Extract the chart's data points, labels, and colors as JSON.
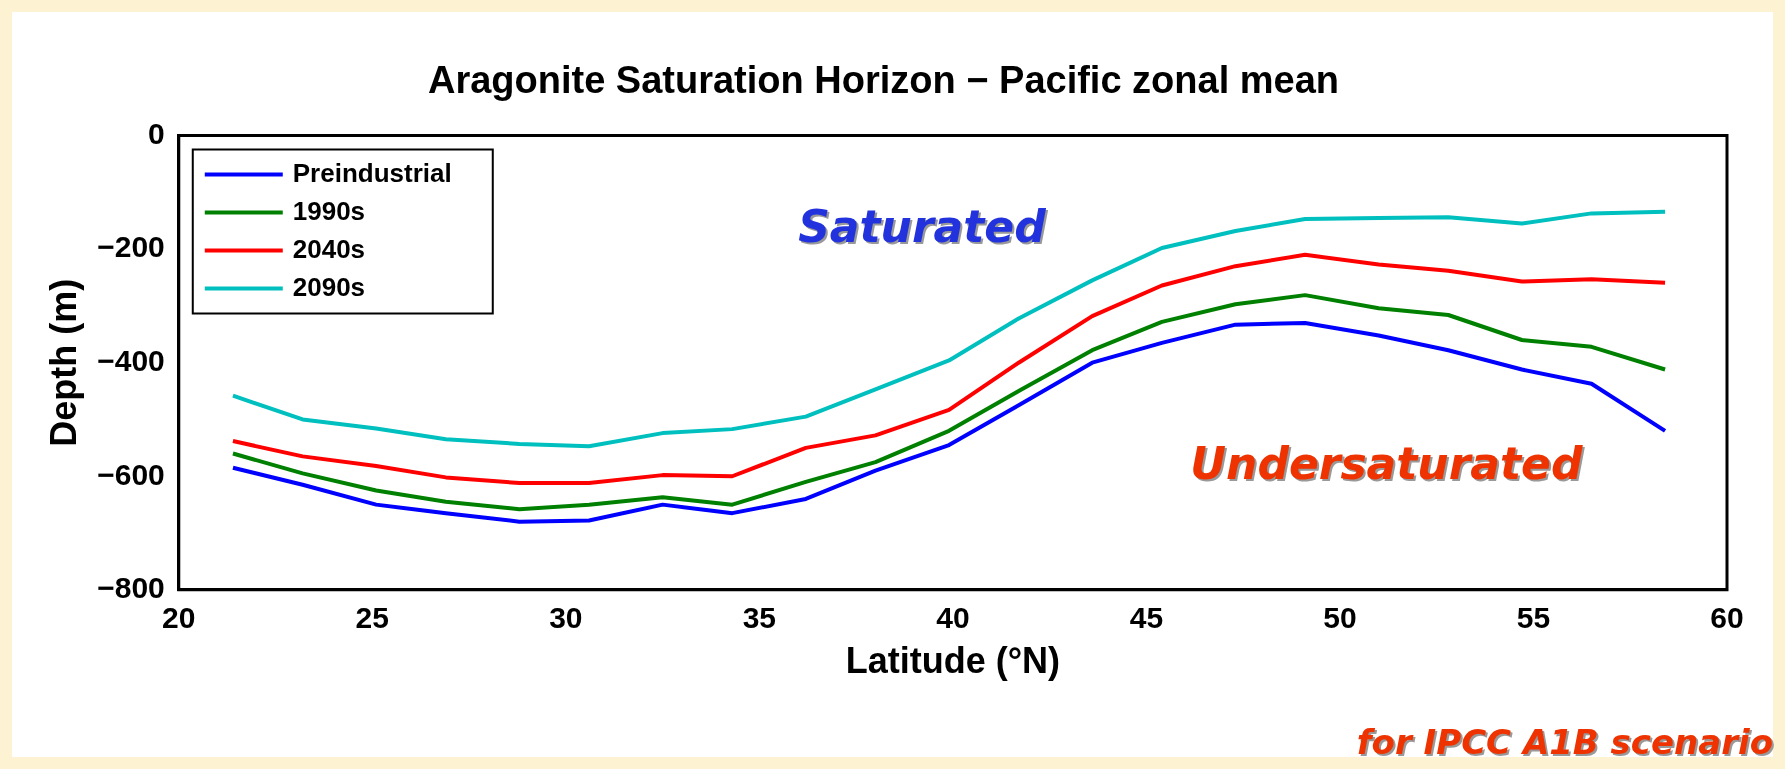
{
  "chart_data": {
    "type": "line",
    "title": "Aragonite Saturation Horizon − Pacific zonal mean",
    "xlabel": "Latitude (°N)",
    "ylabel": "Depth (m)",
    "x": [
      21.4,
      23.2,
      25.1,
      26.9,
      28.8,
      30.6,
      32.5,
      34.3,
      36.2,
      38.0,
      39.9,
      41.7,
      43.6,
      45.4,
      47.3,
      49.1,
      51.0,
      52.8,
      54.7,
      56.5,
      58.4
    ],
    "series": [
      {
        "name": "Preindustrial",
        "color": "#0000ff",
        "values": [
          -585,
          -615,
          -650,
          -665,
          -680,
          -678,
          -650,
          -665,
          -640,
          -590,
          -545,
          -475,
          -400,
          -365,
          -333,
          -330,
          -352,
          -378,
          -412,
          -437,
          -520
        ]
      },
      {
        "name": "1990s",
        "color": "#008000",
        "values": [
          -560,
          -595,
          -625,
          -645,
          -658,
          -650,
          -637,
          -650,
          -610,
          -575,
          -520,
          -450,
          -378,
          -328,
          -297,
          -281,
          -304,
          -316,
          -360,
          -372,
          -412
        ]
      },
      {
        "name": "2040s",
        "color": "#ff0000",
        "values": [
          -538,
          -565,
          -582,
          -602,
          -612,
          -612,
          -598,
          -600,
          -550,
          -528,
          -483,
          -400,
          -318,
          -264,
          -230,
          -210,
          -227,
          -238,
          -257,
          -253,
          -259
        ]
      },
      {
        "name": "2090s",
        "color": "#00bfbf",
        "values": [
          -458,
          -500,
          -516,
          -535,
          -543,
          -547,
          -524,
          -517,
          -495,
          -447,
          -396,
          -322,
          -255,
          -198,
          -168,
          -147,
          -145,
          -144,
          -155,
          -137,
          -134
        ]
      }
    ],
    "xlim": [
      20,
      60
    ],
    "xticks": [
      20,
      25,
      30,
      35,
      40,
      45,
      50,
      55,
      60
    ],
    "ylim": [
      -800,
      0
    ],
    "yticks": [
      -800,
      -600,
      -400,
      -200,
      0
    ],
    "grid": false,
    "legend": "top left",
    "marker": "none",
    "line_style": "solid",
    "annotations": [
      "Saturated",
      "Undersaturated",
      "for IPCC A1B scenario"
    ]
  }
}
